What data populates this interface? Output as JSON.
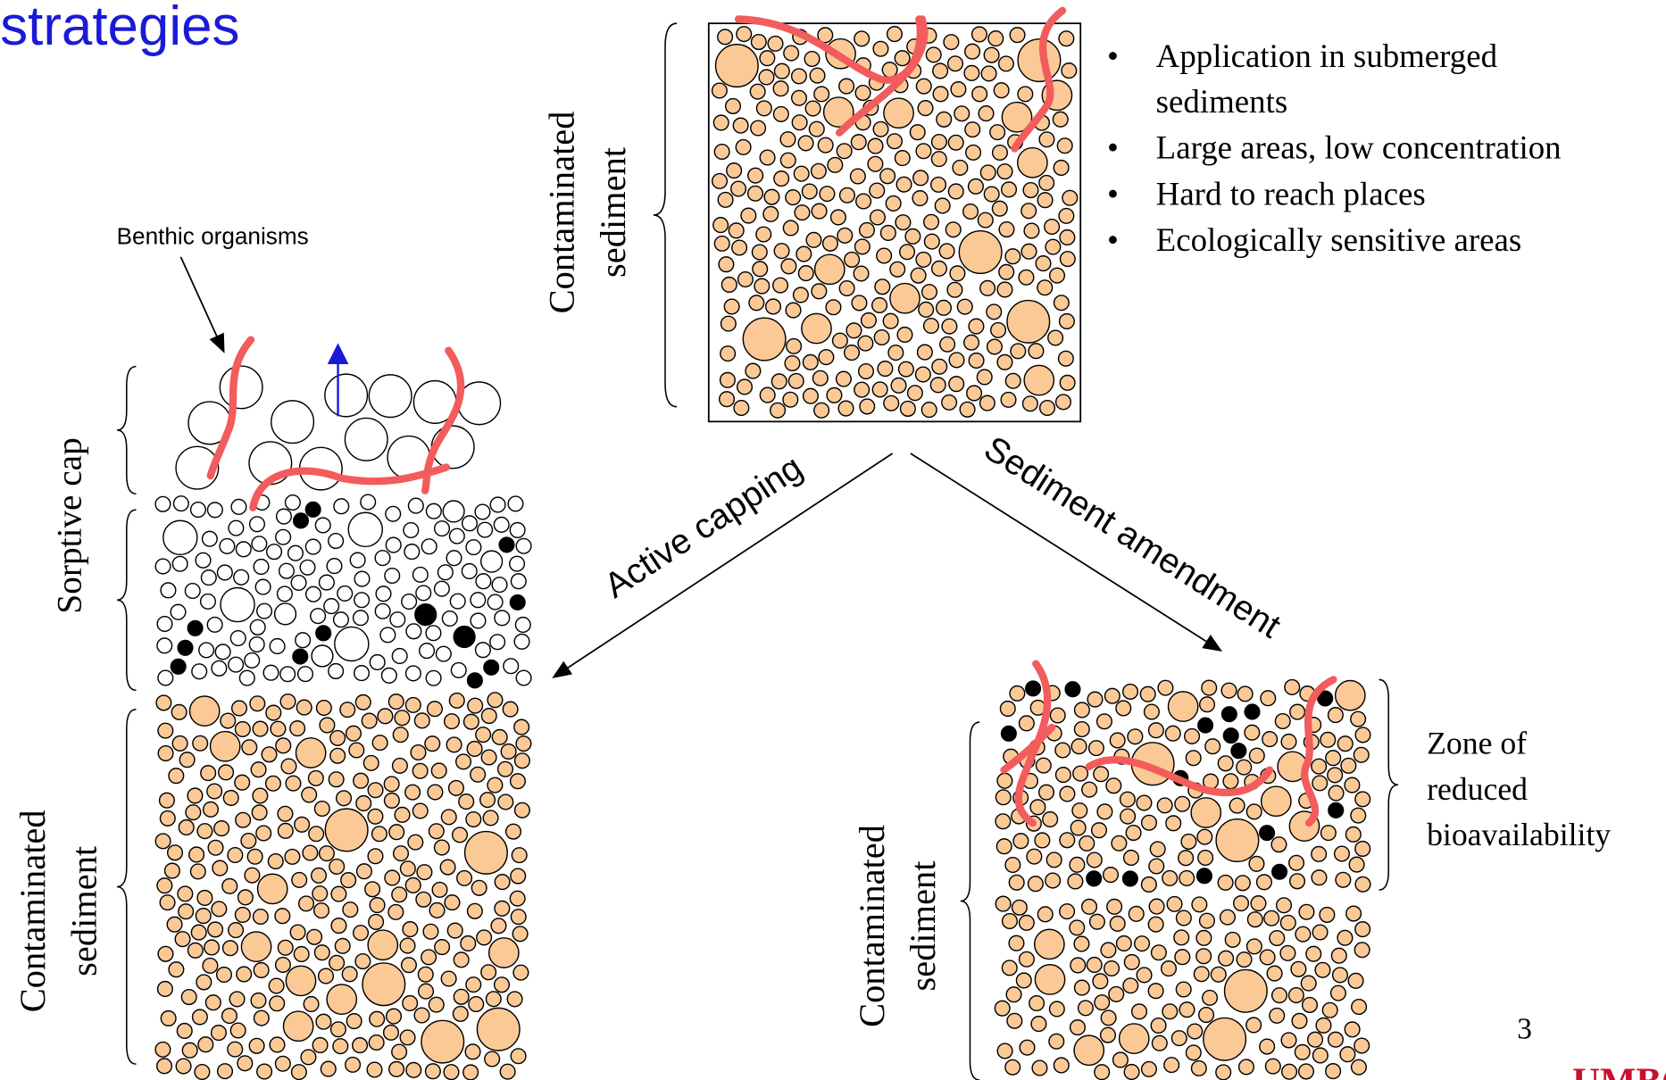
{
  "title": "strategies",
  "top_panel": {
    "label_lines": [
      "Contaminated",
      "sediment"
    ],
    "bullets": [
      [
        "Application in submerged",
        "sediments"
      ],
      [
        "Large areas, low concentration"
      ],
      [
        "Hard to reach places"
      ],
      [
        "Ecologically sensitive areas"
      ]
    ]
  },
  "arrows": {
    "left": "Active capping",
    "right": "Sediment amendment"
  },
  "left_panel": {
    "organism_label": "Benthic organisms",
    "cap_label": "Sorptive cap",
    "sediment_label_lines": [
      "Contaminated",
      "sediment"
    ]
  },
  "right_panel": {
    "zone_label_lines": [
      "Zone of",
      "reduced",
      "bioavailability"
    ],
    "sediment_label_lines": [
      "Contaminated",
      "sediment"
    ]
  },
  "page_number": "3",
  "logo": "UMBC"
}
